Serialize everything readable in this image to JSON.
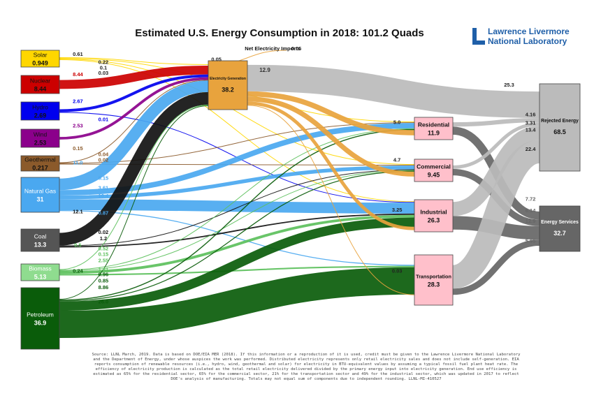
{
  "chart_data": {
    "type": "sankey",
    "title": "Estimated U.S. Energy Consumption in 2018: 101.2 Quads",
    "logo": [
      "Lawrence Livermore",
      "National Laboratory"
    ],
    "footnote": "Source: LLNL March, 2019. Data is based on DOE/EIA MER (2018). If this information or a reproduction of it is used, credit must be given to the Lawrence Livermore National Laboratory and the Department of Energy, under whose auspices the work was performed. Distributed electricity represents only retail electricity sales and does not include self-generation. EIA reports consumption of renewable resources (i.e., hydro, wind, geothermal and solar) for electricity in BTU-equivalent values by assuming a typical fossil fuel plant heat rate. The efficiency of electricity production is calculated as the total retail electricity delivered divided by the primary energy input into electricity generation. End use efficiency is estimated as 65% for the residential sector, 65% for the commercial sector, 21% for the transportation sector and 49% for the industrial sector, which was updated in 2017 to reflect DOE's analysis of manufacturing. Totals may not equal sum of components due to independent rounding. LLNL-MI-410527",
    "nodes": [
      {
        "name": "Solar",
        "value": 0.949,
        "color": "#ffd700"
      },
      {
        "name": "Nuclear",
        "value": 8.44,
        "color": "#cc0000"
      },
      {
        "name": "Hydro",
        "value": 2.69,
        "color": "#0000ee"
      },
      {
        "name": "Wind",
        "value": 2.53,
        "color": "#8b008b"
      },
      {
        "name": "Geothermal",
        "value": 0.217,
        "color": "#8b5a2b"
      },
      {
        "name": "Natural Gas",
        "value": 31,
        "color": "#4aa8f0"
      },
      {
        "name": "Coal",
        "value": 13.3,
        "color": "#555555"
      },
      {
        "name": "Biomass",
        "value": 5.13,
        "color": "#8fdc8f"
      },
      {
        "name": "Petroleum",
        "value": 36.9,
        "color": "#0a5c0a"
      },
      {
        "name": "Electricity Generation",
        "value": 38.2,
        "color": "#e8a33d",
        "delivered": 12.9
      },
      {
        "name": "Residential",
        "value": 11.9,
        "color": "#ffc0cb"
      },
      {
        "name": "Commercial",
        "value": 9.45,
        "color": "#ffc0cb"
      },
      {
        "name": "Industrial",
        "value": 26.3,
        "color": "#ffc0cb"
      },
      {
        "name": "Transportation",
        "value": 28.3,
        "color": "#ffc0cb"
      },
      {
        "name": "Rejected Energy",
        "value": 68.5,
        "color": "#bbbbbb"
      },
      {
        "name": "Energy Services",
        "value": 32.7,
        "color": "#666666"
      },
      {
        "name": "Net Electricity Imports",
        "value": 0.05,
        "color": "#e8a33d"
      }
    ],
    "links": [
      {
        "source": "Solar",
        "target": "Electricity Generation",
        "value": 0.61,
        "color": "#ffd700"
      },
      {
        "source": "Solar",
        "target": "Residential",
        "value": 0.22,
        "color": "#ffd700"
      },
      {
        "source": "Solar",
        "target": "Commercial",
        "value": 0.1,
        "color": "#ffd700"
      },
      {
        "source": "Solar",
        "target": "Industrial",
        "value": 0.03,
        "color": "#ffd700"
      },
      {
        "source": "Net Electricity Imports",
        "target": "Electricity Generation",
        "value": 0.05,
        "color": "#e8a33d"
      },
      {
        "source": "Nuclear",
        "target": "Electricity Generation",
        "value": 8.44,
        "color": "#cc0000"
      },
      {
        "source": "Hydro",
        "target": "Electricity Generation",
        "value": 2.67,
        "color": "#0000ee"
      },
      {
        "source": "Hydro",
        "target": "Industrial",
        "value": 0.01,
        "color": "#0000ee"
      },
      {
        "source": "Wind",
        "target": "Electricity Generation",
        "value": 2.53,
        "color": "#8b008b"
      },
      {
        "source": "Geothermal",
        "target": "Electricity Generation",
        "value": 0.15,
        "color": "#8b5a2b"
      },
      {
        "source": "Geothermal",
        "target": "Residential",
        "value": 0.04,
        "color": "#8b5a2b"
      },
      {
        "source": "Geothermal",
        "target": "Commercial",
        "value": 0.02,
        "color": "#8b5a2b"
      },
      {
        "source": "Natural Gas",
        "target": "Electricity Generation",
        "value": 11,
        "label": "11.0",
        "color": "#4aa8f0"
      },
      {
        "source": "Natural Gas",
        "target": "Residential",
        "value": 5.15,
        "color": "#4aa8f0"
      },
      {
        "source": "Natural Gas",
        "target": "Commercial",
        "value": 3.61,
        "color": "#4aa8f0"
      },
      {
        "source": "Natural Gas",
        "target": "Industrial",
        "value": 10.4,
        "color": "#4aa8f0"
      },
      {
        "source": "Natural Gas",
        "target": "Transportation",
        "value": 0.87,
        "color": "#4aa8f0"
      },
      {
        "source": "Coal",
        "target": "Electricity Generation",
        "value": 12.1,
        "color": "#111111"
      },
      {
        "source": "Coal",
        "target": "Commercial",
        "value": 0.02,
        "color": "#111111"
      },
      {
        "source": "Coal",
        "target": "Industrial",
        "value": 1.2,
        "color": "#111111"
      },
      {
        "source": "Biomass",
        "target": "Electricity Generation",
        "value": 0.5,
        "color": "#5cc05c"
      },
      {
        "source": "Biomass",
        "target": "Residential",
        "value": 0.52,
        "color": "#5cc05c"
      },
      {
        "source": "Biomass",
        "target": "Commercial",
        "value": 0.15,
        "color": "#5cc05c"
      },
      {
        "source": "Biomass",
        "target": "Industrial",
        "value": 2.55,
        "color": "#5cc05c"
      },
      {
        "source": "Biomass",
        "target": "Transportation",
        "value": 1.41,
        "color": "#5cc05c"
      },
      {
        "source": "Petroleum",
        "target": "Electricity Generation",
        "value": 0.24,
        "color": "#0a5c0a"
      },
      {
        "source": "Petroleum",
        "target": "Residential",
        "value": 0.96,
        "color": "#0a5c0a"
      },
      {
        "source": "Petroleum",
        "target": "Commercial",
        "value": 0.85,
        "color": "#0a5c0a"
      },
      {
        "source": "Petroleum",
        "target": "Industrial",
        "value": 8.86,
        "color": "#0a5c0a"
      },
      {
        "source": "Petroleum",
        "target": "Transportation",
        "value": 26,
        "label": "26.0",
        "color": "#0a5c0a"
      },
      {
        "source": "Electricity Generation",
        "target": "Rejected Energy",
        "value": 25.3,
        "color": "#bbbbbb"
      },
      {
        "source": "Electricity Generation",
        "target": "Residential",
        "value": 5,
        "label": "5.0",
        "color": "#e8a33d"
      },
      {
        "source": "Electricity Generation",
        "target": "Commercial",
        "value": 4.7,
        "color": "#e8a33d"
      },
      {
        "source": "Electricity Generation",
        "target": "Industrial",
        "value": 3.25,
        "color": "#e8a33d"
      },
      {
        "source": "Electricity Generation",
        "target": "Transportation",
        "value": 0.03,
        "color": "#e8a33d"
      },
      {
        "source": "Residential",
        "target": "Rejected Energy",
        "value": 4.16,
        "color": "#bbbbbb"
      },
      {
        "source": "Residential",
        "target": "Energy Services",
        "value": 7.72,
        "color": "#666666"
      },
      {
        "source": "Commercial",
        "target": "Rejected Energy",
        "value": 3.31,
        "color": "#bbbbbb"
      },
      {
        "source": "Commercial",
        "target": "Energy Services",
        "value": 6.14,
        "color": "#666666"
      },
      {
        "source": "Industrial",
        "target": "Rejected Energy",
        "value": 13.4,
        "color": "#bbbbbb"
      },
      {
        "source": "Industrial",
        "target": "Energy Services",
        "value": 12.9,
        "color": "#666666"
      },
      {
        "source": "Transportation",
        "target": "Rejected Energy",
        "value": 22.4,
        "color": "#bbbbbb"
      },
      {
        "source": "Transportation",
        "target": "Energy Services",
        "value": 5.95,
        "color": "#666666"
      }
    ]
  }
}
